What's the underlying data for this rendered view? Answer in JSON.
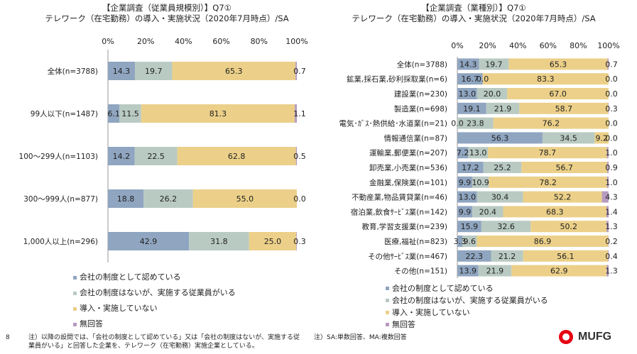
{
  "colors": {
    "series1": "#8fa5c0",
    "series2": "#b9cac3",
    "series3": "#ecd089",
    "series4": "#b79ac0"
  },
  "legend": [
    "会社の制度として認めている",
    "会社の制度はないが、実施する従業員がいる",
    "導入・実施していない",
    "無回答"
  ],
  "footer": {
    "page_number": "8",
    "note_left": "注）以降の設問では、「会社の制度として認めている」又は「会社の制度はないが、実施する従業員がいる」と回答した企業を、テレワーク（在宅勤務）実施企業としている。",
    "note_right": "注）SA:単数回答、MA:複数回答",
    "logo_text": "MUFG"
  },
  "chart_data": [
    {
      "type": "bar",
      "stacked": true,
      "orientation": "horizontal",
      "title_line1": "【企業調査（従業員規模別）】Q7①",
      "title_line2": "テレワーク（在宅勤務）の導入・実施状況（2020年7月時点）/SA",
      "x_ticks": [
        "0%",
        "20%",
        "40%",
        "60%",
        "80%",
        "100%"
      ],
      "xlim": [
        0,
        100
      ],
      "categories": [
        "全体(n=3788)",
        "99人以下(n=1487)",
        "100～299人(n=1103)",
        "300～999人(n=877)",
        "1,000人以上(n=296)"
      ],
      "series": [
        {
          "name": "会社の制度として認めている",
          "values": [
            14.3,
            6.1,
            14.2,
            18.8,
            42.9
          ]
        },
        {
          "name": "会社の制度はないが、実施する従業員がいる",
          "values": [
            19.7,
            11.5,
            22.5,
            26.2,
            31.8
          ]
        },
        {
          "name": "導入・実施していない",
          "values": [
            65.3,
            81.3,
            62.8,
            55.0,
            25.0
          ]
        },
        {
          "name": "無回答",
          "values": [
            0.7,
            1.1,
            0.5,
            0.0,
            0.3
          ]
        }
      ],
      "labels": [
        [
          "14.3",
          "19.7",
          "65.3",
          "0.7"
        ],
        [
          "6.1",
          "11.5",
          "81.3",
          "1.1"
        ],
        [
          "14.2",
          "22.5",
          "62.8",
          "0.5"
        ],
        [
          "18.8",
          "26.2",
          "55.0",
          "0.0"
        ],
        [
          "42.9",
          "31.8",
          "25.0",
          "0.3"
        ]
      ]
    },
    {
      "type": "bar",
      "stacked": true,
      "orientation": "horizontal",
      "title_line1": "【企業調査（業種別）】Q7①",
      "title_line2": "テレワーク（在宅勤務）の導入・実施状況（2020年7月時点）/SA",
      "x_ticks": [
        "0%",
        "20%",
        "40%",
        "60%",
        "80%",
        "100%"
      ],
      "xlim": [
        0,
        100
      ],
      "categories": [
        "全体(n=3788)",
        "鉱業,採石業,砂利採取業(n=6)",
        "建設業(n=230)",
        "製造業(n=698)",
        "電気･ｶﾞｽ･熱供給･水道業(n=21)",
        "情報通信業(n=87)",
        "運輸業,郵便業(n=207)",
        "卸売業,小売業(n=536)",
        "金融業,保険業(n=101)",
        "不動産業,物品賃貸業(n=46)",
        "宿泊業,飲食ｻｰﾋﾞｽ業(n=142)",
        "教育,学習支援業(n=239)",
        "医療,福祉(n=823)",
        "その他ｻｰﾋﾞｽ業(n=467)",
        "その他(n=151)"
      ],
      "series": [
        {
          "name": "会社の制度として認めている",
          "values": [
            14.3,
            16.7,
            13.0,
            19.1,
            0.0,
            56.3,
            7.2,
            17.2,
            9.9,
            13.0,
            9.9,
            15.9,
            3.3,
            22.3,
            13.9
          ]
        },
        {
          "name": "会社の制度はないが、実施する従業員がいる",
          "values": [
            19.7,
            0.0,
            20.0,
            21.9,
            23.8,
            34.5,
            13.0,
            25.2,
            10.9,
            30.4,
            20.4,
            32.6,
            9.6,
            21.2,
            21.9
          ]
        },
        {
          "name": "導入・実施していない",
          "values": [
            65.3,
            83.3,
            67.0,
            58.7,
            76.2,
            9.2,
            78.7,
            56.7,
            78.2,
            52.2,
            68.3,
            50.2,
            86.9,
            56.1,
            62.9
          ]
        },
        {
          "name": "無回答",
          "values": [
            0.7,
            0.0,
            0.0,
            0.3,
            0.0,
            0.0,
            1.0,
            0.9,
            1.0,
            4.3,
            1.4,
            1.3,
            0.2,
            0.4,
            1.3
          ]
        }
      ],
      "labels": [
        [
          "14.3",
          "19.7",
          "65.3",
          "0.7"
        ],
        [
          "16.7",
          "0.0",
          "83.3",
          "0.0"
        ],
        [
          "13.0",
          "20.0",
          "67.0",
          "0.0"
        ],
        [
          "19.1",
          "21.9",
          "58.7",
          "0.3"
        ],
        [
          "0.0",
          "23.8",
          "76.2",
          "0.0"
        ],
        [
          "56.3",
          "34.5",
          "9.2",
          "0.0"
        ],
        [
          "7.2",
          "13.0",
          "78.7",
          "1.0"
        ],
        [
          "17.2",
          "25.2",
          "56.7",
          "0.9"
        ],
        [
          "9.9",
          "10.9",
          "78.2",
          "1.0"
        ],
        [
          "13.0",
          "30.4",
          "52.2",
          "4.3"
        ],
        [
          "9.9",
          "20.4",
          "68.3",
          "1.4"
        ],
        [
          "15.9",
          "32.6",
          "50.2",
          "1.3"
        ],
        [
          "3.3",
          "9.6",
          "86.9",
          "0.2"
        ],
        [
          "22.3",
          "21.2",
          "56.1",
          "0.4"
        ],
        [
          "13.9",
          "21.9",
          "62.9",
          "1.3"
        ]
      ]
    }
  ]
}
